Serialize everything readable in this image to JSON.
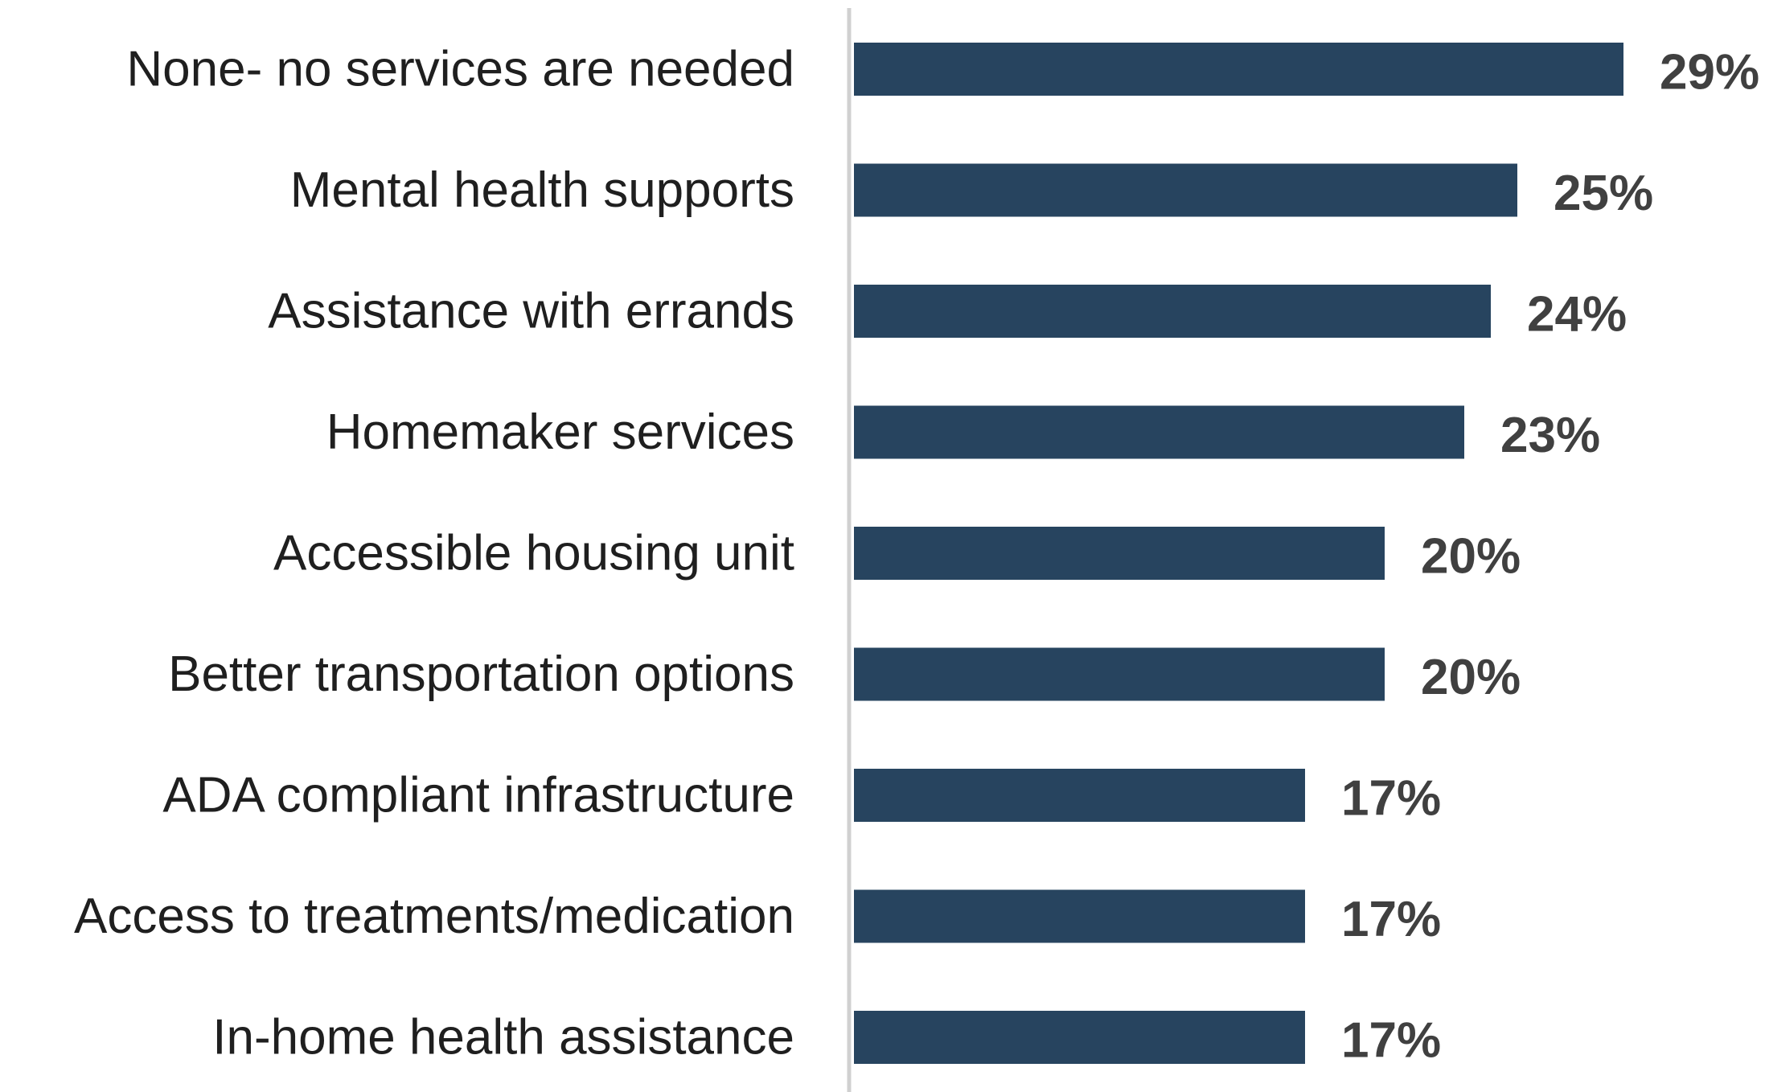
{
  "chart_data": {
    "type": "bar",
    "orientation": "horizontal",
    "title": "",
    "xlabel": "",
    "ylabel": "",
    "categories": [
      "None- no services are needed",
      "Mental health supports",
      "Assistance with errands",
      "Homemaker services",
      "Accessible housing unit",
      "Better transportation options",
      "ADA compliant infrastructure",
      "Access to treatments/medication",
      "In-home health assistance"
    ],
    "values": [
      29,
      25,
      24,
      23,
      20,
      20,
      17,
      17,
      17
    ],
    "value_labels": [
      "29%",
      "25%",
      "24%",
      "23%",
      "20%",
      "20%",
      "17%",
      "17%",
      "17%"
    ],
    "xlim": [
      0,
      30
    ],
    "grid": false,
    "legend": "none",
    "bar_color": "#27445f",
    "axis_color": "#d0d0d0"
  }
}
